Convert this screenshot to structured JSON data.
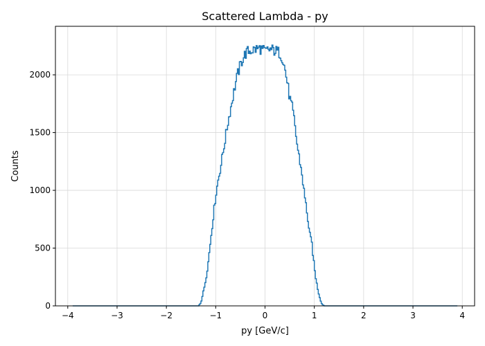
{
  "chart_data": {
    "type": "histogram",
    "title": "Scattered Lambda - py",
    "xlabel": "py [GeV/c]",
    "ylabel": "Counts",
    "xlim": [
      -4.25,
      4.25
    ],
    "ylim": [
      0,
      2420
    ],
    "x_ticks": [
      -4,
      -3,
      -2,
      -1,
      0,
      1,
      2,
      3,
      4
    ],
    "x_tick_labels": [
      "−4",
      "−3",
      "−2",
      "−1",
      "0",
      "1",
      "2",
      "3",
      "4"
    ],
    "y_ticks": [
      0,
      500,
      1000,
      1500,
      2000
    ],
    "y_tick_labels": [
      "0",
      "500",
      "1000",
      "1500",
      "2000"
    ],
    "grid": true,
    "color": "#1f77b4",
    "bin_range": [
      -3.9,
      3.9
    ],
    "support": [
      -1.35,
      1.35
    ],
    "bin_width": 0.02,
    "x": [
      -1.35,
      -1.3,
      -1.25,
      -1.2,
      -1.15,
      -1.1,
      -1.05,
      -1.0,
      -0.95,
      -0.9,
      -0.85,
      -0.8,
      -0.75,
      -0.7,
      -0.65,
      -0.6,
      -0.55,
      -0.5,
      -0.45,
      -0.4,
      -0.35,
      -0.3,
      -0.2,
      -0.1,
      0.0,
      0.1,
      0.2,
      0.3,
      0.35,
      0.4,
      0.45,
      0.5,
      0.55,
      0.6,
      0.65,
      0.7,
      0.75,
      0.8,
      0.85,
      0.9,
      0.95,
      1.0,
      1.05,
      1.1,
      1.15,
      1.2,
      1.25,
      1.3,
      1.35
    ],
    "y": [
      0,
      30,
      120,
      230,
      380,
      580,
      770,
      950,
      1090,
      1200,
      1330,
      1460,
      1590,
      1700,
      1810,
      1920,
      2010,
      2080,
      2140,
      2180,
      2200,
      2210,
      2220,
      2230,
      2200,
      2220,
      2210,
      2190,
      2150,
      2060,
      1940,
      1800,
      1720,
      1590,
      1400,
      1270,
      1140,
      960,
      820,
      630,
      540,
      330,
      190,
      90,
      20,
      0,
      0,
      0,
      0
    ]
  }
}
